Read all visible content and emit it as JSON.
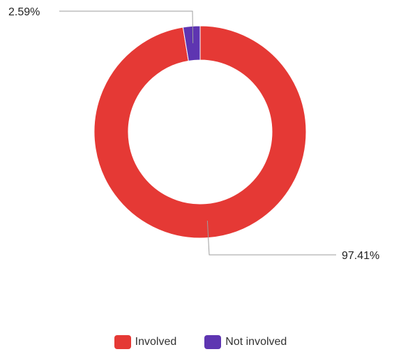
{
  "chart_data": {
    "type": "pie",
    "donut": true,
    "categories": [
      "Involved",
      "Not involved"
    ],
    "values": [
      97.41,
      2.59
    ],
    "labels": [
      "97.41%",
      "2.59%"
    ],
    "colors": [
      "#e53935",
      "#5e35b1"
    ],
    "legend_position": "bottom"
  }
}
